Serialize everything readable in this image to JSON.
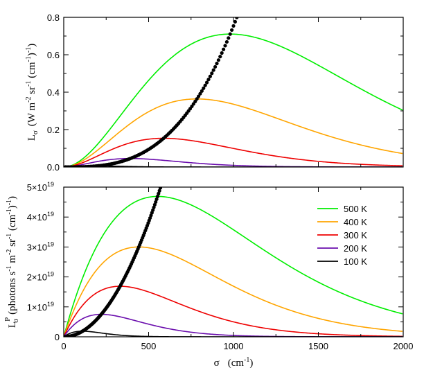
{
  "chart_data": [
    {
      "type": "line",
      "panel": "top",
      "ylabel_main": "L",
      "ylabel_sub": "σ",
      "ylabel_rest": "(W m",
      "ylabel_units": [
        "-2",
        " sr",
        "-1",
        " (cm",
        "-1",
        ")",
        "-1",
        ")"
      ],
      "xlim": [
        0,
        2000
      ],
      "ylim": [
        0,
        0.8
      ],
      "yticks": [
        0.0,
        0.2,
        0.4,
        0.6,
        0.8
      ],
      "ytick_labels": [
        "0.0",
        "0.2",
        "0.4",
        "0.6",
        "0.8"
      ],
      "series": [
        {
          "name": "500 K",
          "color": "#00ee00",
          "T": 500
        },
        {
          "name": "400 K",
          "color": "#ffa500",
          "T": 400
        },
        {
          "name": "300 K",
          "color": "#ee0000",
          "T": 300
        },
        {
          "name": "200 K",
          "color": "#6a0dad",
          "T": 200
        },
        {
          "name": "100 K",
          "color": "#000000",
          "T": 100
        }
      ],
      "peak_locus": {
        "style": "dotted",
        "color": "#000000"
      }
    },
    {
      "type": "line",
      "panel": "bottom",
      "xlabel": "σ",
      "xlabel_units": "(cm",
      "xlabel_exp": "-1",
      "ylabel_main": "L",
      "ylabel_sup": "P",
      "ylabel_sub": "σ",
      "ylabel_rest": "(photons s",
      "xlim": [
        0,
        2000
      ],
      "xticks": [
        0,
        500,
        1000,
        1500,
        2000
      ],
      "xtick_labels": [
        "0",
        "500",
        "1000",
        "1500",
        "2000"
      ],
      "ylim": [
        0,
        5e+19
      ],
      "yticks": [
        0,
        1e+19,
        2e+19,
        3e+19,
        4e+19,
        5e+19
      ],
      "ytick_labels": [
        "0",
        "1×10",
        "2×10",
        "3×10",
        "4×10",
        "5×10"
      ],
      "ytick_exp": "19",
      "series": [
        {
          "name": "500 K",
          "color": "#00ee00",
          "T": 500
        },
        {
          "name": "400 K",
          "color": "#ffa500",
          "T": 400
        },
        {
          "name": "300 K",
          "color": "#ee0000",
          "T": 300
        },
        {
          "name": "200 K",
          "color": "#6a0dad",
          "T": 200
        },
        {
          "name": "100 K",
          "color": "#000000",
          "T": 100
        }
      ],
      "legend": {
        "placement": "top-right",
        "entries": [
          "500 K",
          "400 K",
          "300 K",
          "200 K",
          "100 K"
        ]
      },
      "peak_locus": {
        "style": "dotted",
        "color": "#000000"
      }
    }
  ]
}
